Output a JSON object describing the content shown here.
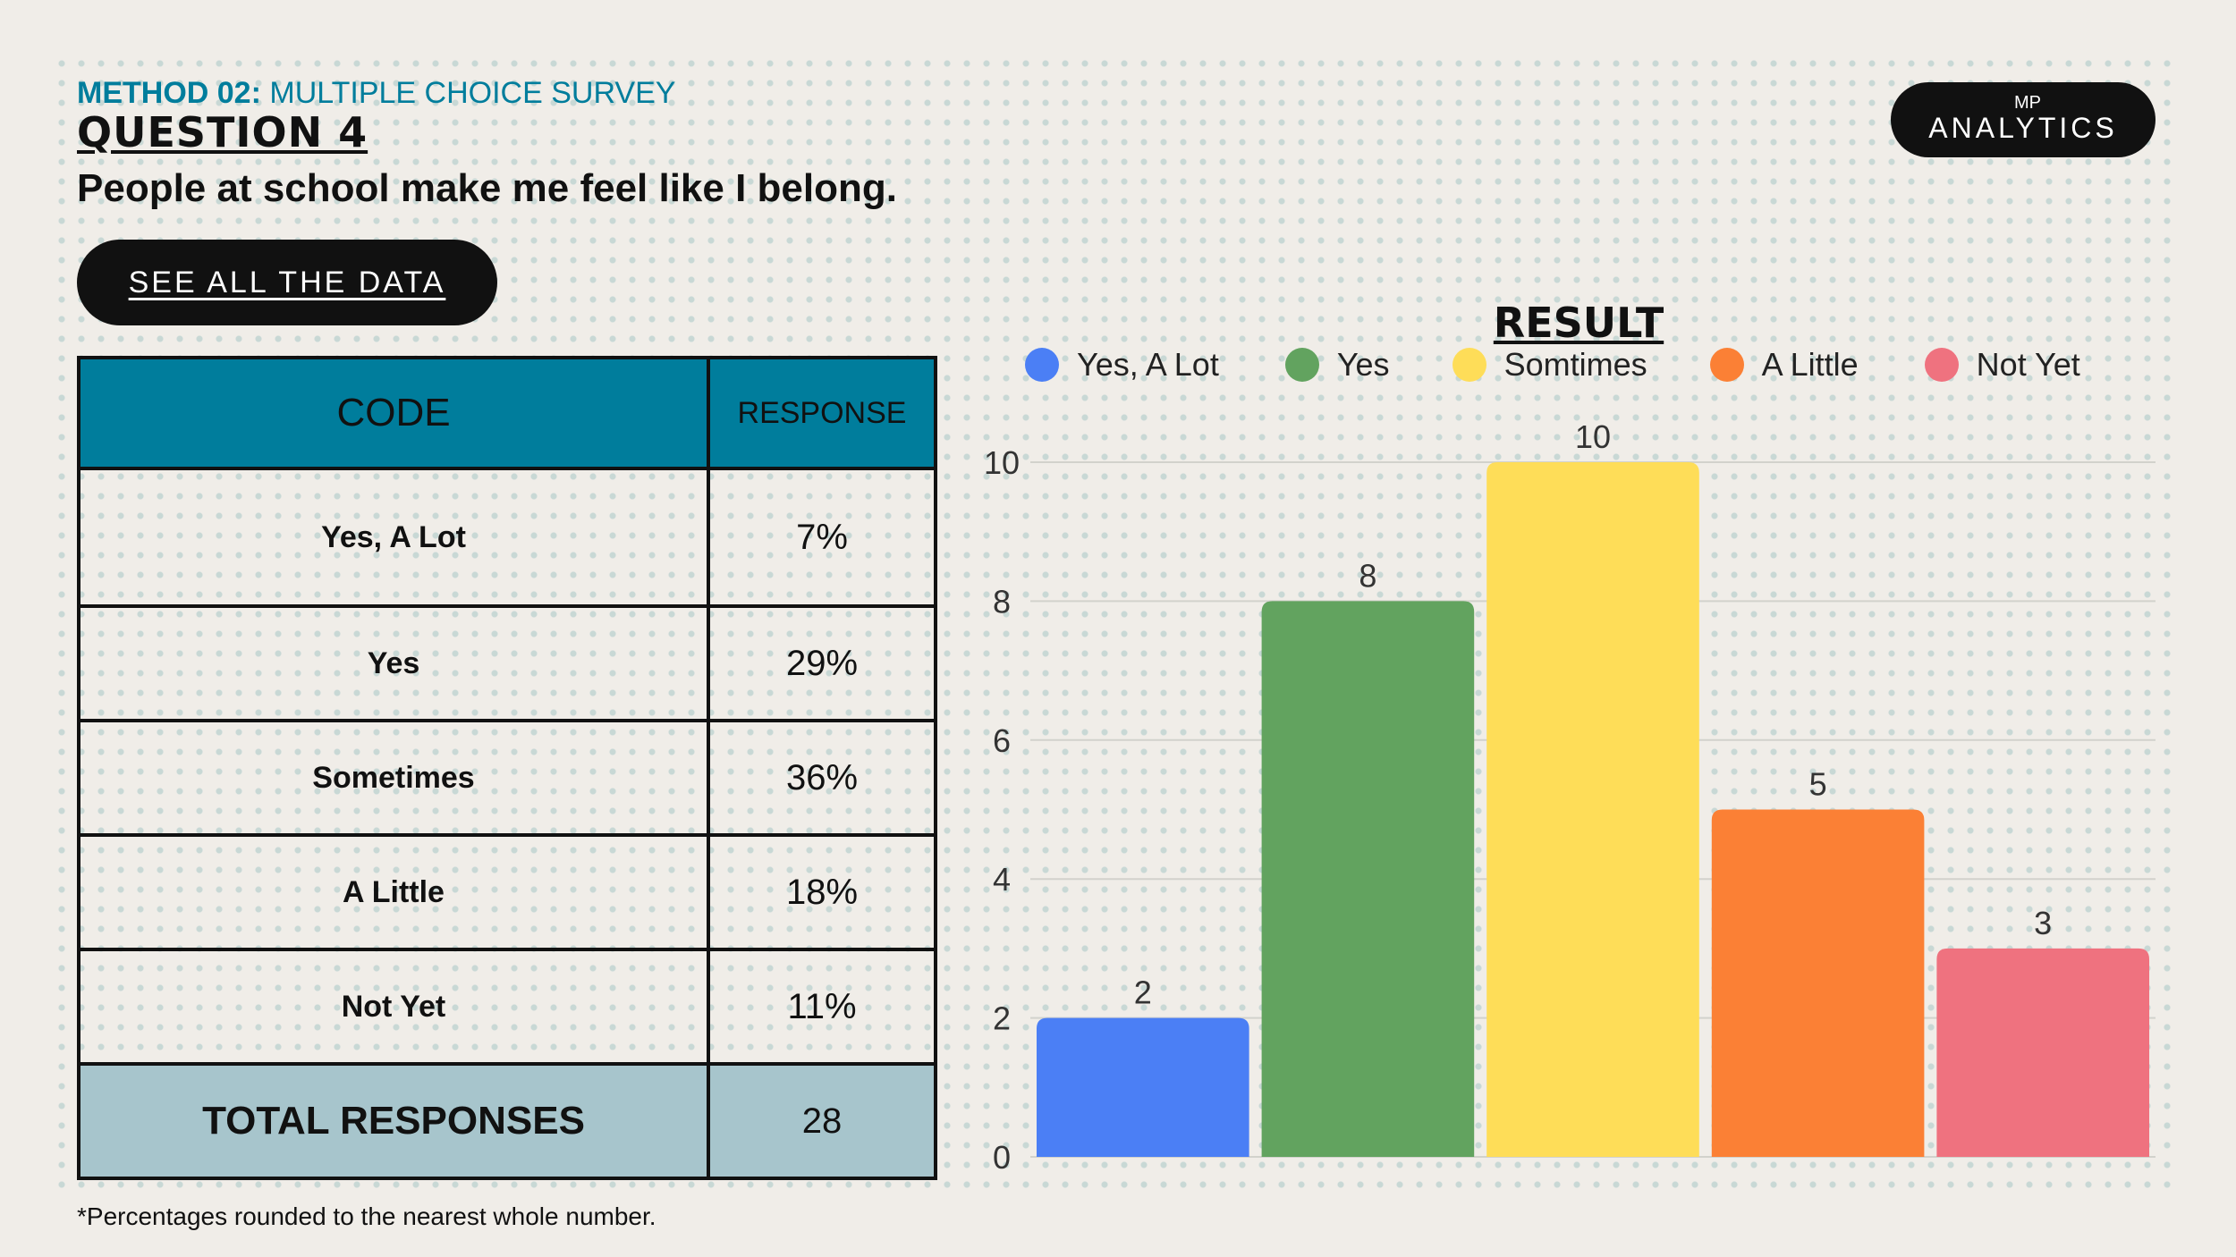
{
  "header": {
    "method_bold": "METHOD 02:",
    "method_rest": " MULTIPLE CHOICE SURVEY",
    "question": "QUESTION 4",
    "prompt": "People at school make me feel like I belong."
  },
  "see_all_button": "SEE ALL THE DATA",
  "logo": {
    "mark": "MP",
    "name": "ANALYTICS"
  },
  "table": {
    "headers": [
      "CODE",
      "RESPONSE"
    ],
    "rows": [
      {
        "code": "Yes, A Lot",
        "response": "7%"
      },
      {
        "code": "Yes",
        "response": "29%"
      },
      {
        "code": "Sometimes",
        "response": "36%"
      },
      {
        "code": "A Little",
        "response": "18%"
      },
      {
        "code": "Not Yet",
        "response": "11%"
      }
    ],
    "total": {
      "code": "TOTAL RESPONSES",
      "response": "28"
    }
  },
  "footnote": "*Percentages rounded to the nearest whole number.",
  "chart_data": {
    "type": "bar",
    "title": "RESULT",
    "categories": [
      "Yes, A Lot",
      "Yes",
      "Somtimes",
      "A Little",
      "Not Yet"
    ],
    "values": [
      2,
      8,
      10,
      5,
      3
    ],
    "colors": [
      "#4b7ff5",
      "#62a35f",
      "#fedd58",
      "#fb8035",
      "#ef727f"
    ],
    "yticks": [
      0,
      2,
      4,
      6,
      8,
      10
    ],
    "ylim": [
      0,
      10
    ],
    "grid": true,
    "legend_position": "top",
    "xlabel": "",
    "ylabel": ""
  }
}
